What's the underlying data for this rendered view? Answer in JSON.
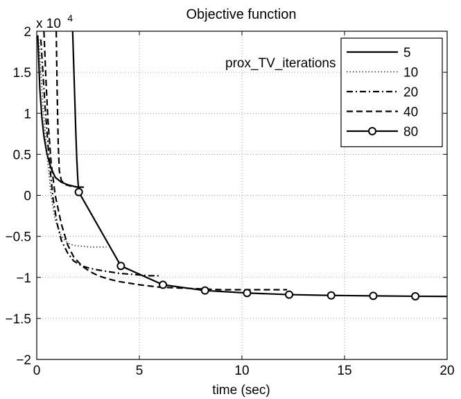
{
  "chart_data": {
    "type": "line",
    "title": "Objective function",
    "xlabel": "time (sec)",
    "ylabel": "",
    "y_exponent_label": "x 10",
    "y_exponent_power": "4",
    "annotation": "prox_TV_iterations",
    "xlim": [
      0,
      20
    ],
    "ylim": [
      -2,
      2
    ],
    "grid": true,
    "legend_position": "top-right",
    "x_ticks": [
      0,
      5,
      10,
      15,
      20
    ],
    "x_tick_labels": [
      "0",
      "5",
      "10",
      "15",
      "20"
    ],
    "y_ticks": [
      -2,
      -1.5,
      -1,
      -0.5,
      0,
      0.5,
      1,
      1.5,
      2
    ],
    "y_tick_labels": [
      "−2",
      "−1.5",
      "−1",
      "−0.5",
      "0",
      "0.5",
      "1",
      "1.5",
      "2"
    ],
    "series": [
      {
        "name": "5",
        "style": "solid",
        "marker": "none",
        "x": [
          0.05,
          0.15,
          0.25,
          0.35,
          0.5,
          0.7,
          0.9,
          1.2,
          1.5,
          1.8,
          2.0,
          2.3
        ],
        "y": [
          1.95,
          1.3,
          0.95,
          0.72,
          0.5,
          0.33,
          0.22,
          0.16,
          0.13,
          0.11,
          0.1,
          0.1
        ]
      },
      {
        "name": "10",
        "style": "dotted",
        "marker": "none",
        "x": [
          0.1,
          0.3,
          0.5,
          0.7,
          0.9,
          1.2,
          1.5,
          1.8,
          2.2,
          2.6,
          3.0,
          3.4
        ],
        "y": [
          1.9,
          1.1,
          0.5,
          0.0,
          -0.3,
          -0.5,
          -0.58,
          -0.61,
          -0.62,
          -0.63,
          -0.63,
          -0.63
        ]
      },
      {
        "name": "20",
        "style": "dashdot",
        "marker": "none",
        "x": [
          0.2,
          0.4,
          0.6,
          0.8,
          1.0,
          1.2,
          1.5,
          1.8,
          2.2,
          2.6,
          3.0,
          3.5,
          4.0,
          4.5,
          5.0,
          5.5,
          6.0
        ],
        "y": [
          1.9,
          1.1,
          0.45,
          -0.05,
          -0.35,
          -0.55,
          -0.7,
          -0.8,
          -0.86,
          -0.89,
          -0.91,
          -0.93,
          -0.95,
          -0.96,
          -0.97,
          -0.98,
          -0.98
        ]
      },
      {
        "name": "40",
        "style": "dashed",
        "marker": "none",
        "x": [
          0.35,
          0.4,
          0.45,
          0.55,
          0.7,
          0.9,
          1.2,
          1.5,
          1.8,
          2.2,
          2.6,
          3.0,
          3.5,
          4.0,
          5.0,
          6.0,
          7.0,
          8.0,
          9.0,
          10.0,
          11.0,
          12.2
        ],
        "y": [
          2.0,
          1.7,
          1.4,
          0.9,
          0.4,
          0.0,
          -0.35,
          -0.6,
          -0.75,
          -0.86,
          -0.93,
          -0.98,
          -1.02,
          -1.05,
          -1.09,
          -1.12,
          -1.13,
          -1.14,
          -1.15,
          -1.15,
          -1.15,
          -1.15
        ]
      },
      {
        "name": "40",
        "style": "dashed",
        "marker": "none",
        "legend": false,
        "x": [
          0.95,
          1.0,
          1.05,
          1.1,
          1.2,
          1.4,
          1.7,
          2.0,
          2.3
        ],
        "y": [
          2.0,
          1.2,
          0.6,
          0.3,
          0.18,
          0.13,
          0.11,
          0.1,
          0.1
        ]
      },
      {
        "name": "80",
        "style": "solid",
        "marker": "circle",
        "legend": false,
        "x": [
          1.75,
          1.8,
          1.85,
          1.9,
          1.95,
          2.0,
          2.05
        ],
        "y": [
          2.0,
          1.6,
          1.2,
          0.8,
          0.45,
          0.2,
          0.04
        ]
      },
      {
        "name": "80",
        "style": "solid",
        "marker": "circle",
        "marker_x": [
          2.05,
          4.1,
          6.15,
          8.2,
          10.25,
          12.3,
          14.35,
          16.4,
          18.45
        ],
        "marker_y": [
          0.04,
          -0.86,
          -1.09,
          -1.16,
          -1.19,
          -1.21,
          -1.22,
          -1.225,
          -1.23
        ],
        "x": [
          2.05,
          4.1,
          6.15,
          8.2,
          10.25,
          12.3,
          14.35,
          16.4,
          18.45,
          20.0
        ],
        "y": [
          0.04,
          -0.86,
          -1.09,
          -1.16,
          -1.19,
          -1.21,
          -1.22,
          -1.225,
          -1.23,
          -1.232
        ]
      }
    ],
    "legend": [
      {
        "label": "5",
        "style": "solid",
        "marker": "none"
      },
      {
        "label": "10",
        "style": "dotted",
        "marker": "none"
      },
      {
        "label": "20",
        "style": "dashdot",
        "marker": "none"
      },
      {
        "label": "40",
        "style": "dashed",
        "marker": "none"
      },
      {
        "label": "80",
        "style": "solid",
        "marker": "circle"
      }
    ]
  }
}
